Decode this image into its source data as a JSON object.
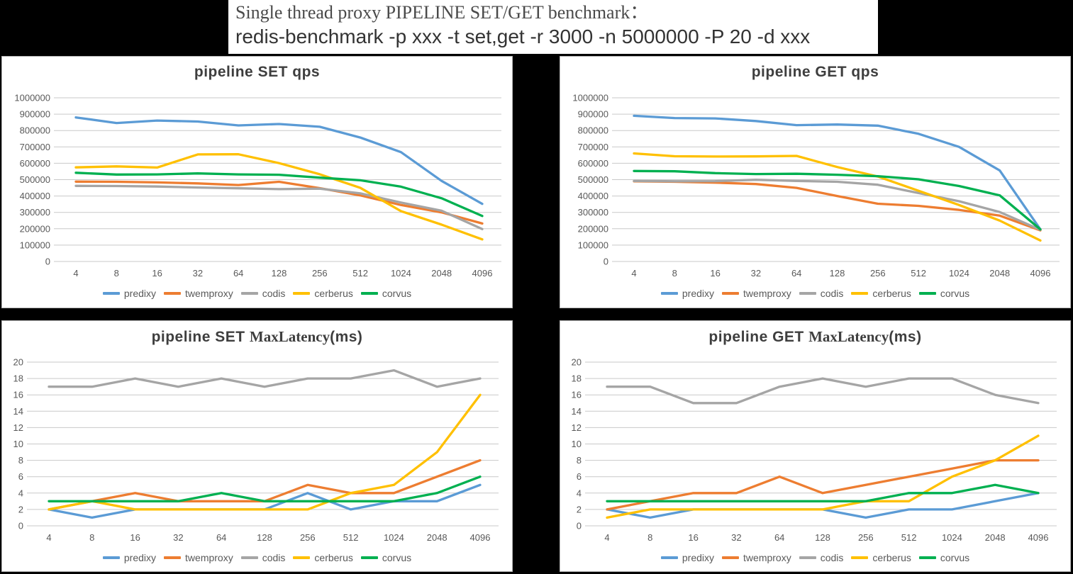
{
  "header": {
    "line1": "Single thread proxy PIPELINE SET/GET benchmark：",
    "line2": "redis-benchmark -p xxx -t set,get -r 3000 -n 5000000 -P 20 -d xxx"
  },
  "colors": {
    "predixy": "#5B9BD5",
    "twemproxy": "#ED7D31",
    "codis": "#A5A5A5",
    "cerberus": "#FFC000",
    "corvus": "#00B050",
    "grid": "#c9c9c9",
    "axis_text": "#595959",
    "title_text": "#3e3e3e"
  },
  "legend_labels": [
    "predixy",
    "twemproxy",
    "codis",
    "cerberus",
    "corvus"
  ],
  "chart_data": [
    {
      "id": "set-qps",
      "type": "line",
      "title_parts": [
        {
          "text": "pipeline  SET qps",
          "serif": false
        }
      ],
      "categories": [
        "4",
        "8",
        "16",
        "32",
        "64",
        "128",
        "256",
        "512",
        "1024",
        "2048",
        "4096"
      ],
      "ylim": [
        0,
        1000000
      ],
      "ytick_step": 100000,
      "grid": true,
      "legend_position": "bottom",
      "series": [
        {
          "name": "predixy",
          "color": "#5B9BD5",
          "values": [
            880000,
            846000,
            861000,
            855000,
            831000,
            840000,
            823000,
            757000,
            668000,
            492000,
            352000
          ]
        },
        {
          "name": "twemproxy",
          "color": "#ED7D31",
          "values": [
            488000,
            487000,
            483000,
            477000,
            467000,
            487000,
            448000,
            404000,
            345000,
            300000,
            232000
          ]
        },
        {
          "name": "codis",
          "color": "#A5A5A5",
          "values": [
            462000,
            461000,
            458000,
            452000,
            447000,
            442000,
            445000,
            416000,
            360000,
            310000,
            198000
          ]
        },
        {
          "name": "cerberus",
          "color": "#FFC000",
          "values": [
            575000,
            581000,
            574000,
            654000,
            655000,
            601000,
            533000,
            450000,
            308000,
            225000,
            135000
          ]
        },
        {
          "name": "corvus",
          "color": "#00B050",
          "values": [
            542000,
            531000,
            532000,
            538000,
            532000,
            530000,
            512000,
            496000,
            457000,
            386000,
            278000
          ]
        }
      ]
    },
    {
      "id": "get-qps",
      "type": "line",
      "title_parts": [
        {
          "text": "pipeline  GET qps",
          "serif": false
        }
      ],
      "categories": [
        "4",
        "8",
        "16",
        "32",
        "64",
        "128",
        "256",
        "512",
        "1024",
        "2048",
        "4096"
      ],
      "ylim": [
        0,
        1000000
      ],
      "ytick_step": 100000,
      "grid": true,
      "legend_position": "bottom",
      "series": [
        {
          "name": "predixy",
          "color": "#5B9BD5",
          "values": [
            890000,
            876000,
            874000,
            858000,
            833000,
            837000,
            830000,
            780000,
            700000,
            556000,
            196000
          ]
        },
        {
          "name": "twemproxy",
          "color": "#ED7D31",
          "values": [
            490000,
            487000,
            482000,
            473000,
            450000,
            400000,
            353000,
            340000,
            315000,
            280000,
            190000
          ]
        },
        {
          "name": "codis",
          "color": "#A5A5A5",
          "values": [
            492000,
            490000,
            491000,
            499000,
            492000,
            487000,
            469000,
            418000,
            368000,
            302000,
            194000
          ]
        },
        {
          "name": "cerberus",
          "color": "#FFC000",
          "values": [
            660000,
            643000,
            641000,
            642000,
            645000,
            577000,
            519000,
            432000,
            345000,
            250000,
            128000
          ]
        },
        {
          "name": "corvus",
          "color": "#00B050",
          "values": [
            553000,
            551000,
            540000,
            534000,
            536000,
            530000,
            521000,
            502000,
            461000,
            404000,
            196000
          ]
        }
      ]
    },
    {
      "id": "set-maxlatency",
      "type": "line",
      "title_parts": [
        {
          "text": "pipeline  SET ",
          "serif": false
        },
        {
          "text": "MaxLatency",
          "serif": true
        },
        {
          "text": "(ms)",
          "serif": false
        }
      ],
      "categories": [
        "4",
        "8",
        "16",
        "32",
        "64",
        "128",
        "256",
        "512",
        "1024",
        "2048",
        "4096"
      ],
      "ylim": [
        0,
        20
      ],
      "ytick_step": 2,
      "grid": true,
      "legend_position": "bottom",
      "series": [
        {
          "name": "predixy",
          "color": "#5B9BD5",
          "values": [
            2,
            1,
            2,
            2,
            2,
            2,
            4,
            2,
            3,
            3,
            5
          ]
        },
        {
          "name": "twemproxy",
          "color": "#ED7D31",
          "values": [
            2,
            3,
            4,
            3,
            3,
            3,
            5,
            4,
            4,
            6,
            8
          ]
        },
        {
          "name": "codis",
          "color": "#A5A5A5",
          "values": [
            17,
            17,
            18,
            17,
            18,
            17,
            18,
            18,
            19,
            17,
            18
          ]
        },
        {
          "name": "cerberus",
          "color": "#FFC000",
          "values": [
            2,
            3,
            2,
            2,
            2,
            2,
            2,
            4,
            5,
            9,
            16
          ]
        },
        {
          "name": "corvus",
          "color": "#00B050",
          "values": [
            3,
            3,
            3,
            3,
            4,
            3,
            3,
            3,
            3,
            4,
            6
          ]
        }
      ]
    },
    {
      "id": "get-maxlatency",
      "type": "line",
      "title_parts": [
        {
          "text": "pipeline  GET ",
          "serif": false
        },
        {
          "text": "MaxLatency",
          "serif": true
        },
        {
          "text": "(ms)",
          "serif": false
        }
      ],
      "categories": [
        "4",
        "8",
        "16",
        "32",
        "64",
        "128",
        "256",
        "512",
        "1024",
        "2048",
        "4096"
      ],
      "ylim": [
        0,
        20
      ],
      "ytick_step": 2,
      "grid": true,
      "legend_position": "bottom",
      "series": [
        {
          "name": "predixy",
          "color": "#5B9BD5",
          "values": [
            2,
            1,
            2,
            2,
            2,
            2,
            1,
            2,
            2,
            3,
            4
          ]
        },
        {
          "name": "twemproxy",
          "color": "#ED7D31",
          "values": [
            2,
            3,
            4,
            4,
            6,
            4,
            5,
            6,
            7,
            8,
            8
          ]
        },
        {
          "name": "codis",
          "color": "#A5A5A5",
          "values": [
            17,
            17,
            15,
            15,
            17,
            18,
            17,
            18,
            18,
            16,
            15
          ]
        },
        {
          "name": "cerberus",
          "color": "#FFC000",
          "values": [
            1,
            2,
            2,
            2,
            2,
            2,
            3,
            3,
            6,
            8,
            11
          ]
        },
        {
          "name": "corvus",
          "color": "#00B050",
          "values": [
            3,
            3,
            3,
            3,
            3,
            3,
            3,
            4,
            4,
            5,
            4
          ]
        }
      ]
    }
  ]
}
